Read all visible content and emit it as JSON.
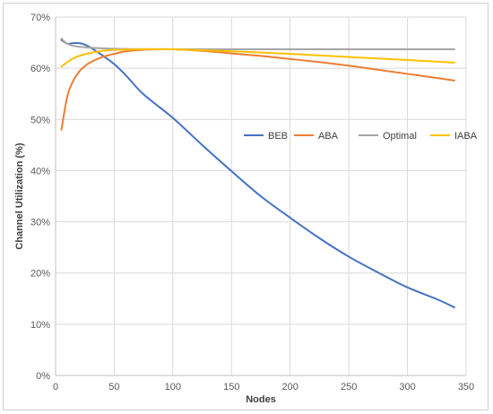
{
  "chart_data": {
    "type": "line",
    "title": "",
    "xlabel": "Nodes",
    "ylabel": "Channel Utilization (%)",
    "xlim": [
      0,
      350
    ],
    "ylim": [
      0,
      70
    ],
    "x_ticks": [
      0,
      50,
      100,
      150,
      200,
      250,
      300,
      350
    ],
    "x_tick_labels": [
      "0",
      "50",
      "100",
      "150",
      "200",
      "250",
      "300",
      "350"
    ],
    "y_ticks": [
      0,
      10,
      20,
      30,
      40,
      50,
      60,
      70
    ],
    "y_tick_labels": [
      "0%",
      "10%",
      "20%",
      "30%",
      "40%",
      "50%",
      "60%",
      "70%"
    ],
    "grid": true,
    "legend_position": "center-right",
    "series": [
      {
        "name": "BEB",
        "color": "#4472C4",
        "x": [
          5,
          10,
          15,
          20,
          25,
          30,
          40,
          50,
          60,
          75,
          100,
          125,
          150,
          175,
          200,
          225,
          250,
          275,
          300,
          325,
          340
        ],
        "y": [
          65.5,
          64.8,
          64.9,
          64.9,
          64.6,
          64,
          62.5,
          60.8,
          58.6,
          54.9,
          50.3,
          45,
          39.9,
          35,
          30.8,
          26.8,
          23.2,
          20.1,
          17.2,
          14.9,
          13.3
        ]
      },
      {
        "name": "ABA",
        "color": "#ED7D31",
        "x": [
          5,
          10,
          15,
          20,
          25,
          30,
          40,
          50,
          60,
          75,
          90,
          100,
          125,
          150,
          175,
          200,
          225,
          250,
          275,
          300,
          325,
          340
        ],
        "y": [
          48,
          54.5,
          57.5,
          59.3,
          60.4,
          61.2,
          62.2,
          62.8,
          63.3,
          63.6,
          63.7,
          63.7,
          63.4,
          62.9,
          62.4,
          61.8,
          61.2,
          60.5,
          59.7,
          58.9,
          58.1,
          57.6
        ]
      },
      {
        "name": "Optimal",
        "color": "#A5A5A5",
        "x": [
          5,
          10,
          20,
          50,
          100,
          150,
          200,
          250,
          300,
          340
        ],
        "y": [
          65.8,
          64.8,
          64.2,
          63.8,
          63.7,
          63.7,
          63.7,
          63.7,
          63.7,
          63.7
        ]
      },
      {
        "name": "IABA",
        "color": "#FFC000",
        "x": [
          5,
          10,
          15,
          20,
          30,
          40,
          50,
          75,
          100,
          150,
          200,
          250,
          300,
          340
        ],
        "y": [
          60.3,
          61.2,
          61.9,
          62.4,
          63,
          63.4,
          63.6,
          63.7,
          63.7,
          63.3,
          62.8,
          62.2,
          61.6,
          61.1
        ]
      }
    ]
  }
}
